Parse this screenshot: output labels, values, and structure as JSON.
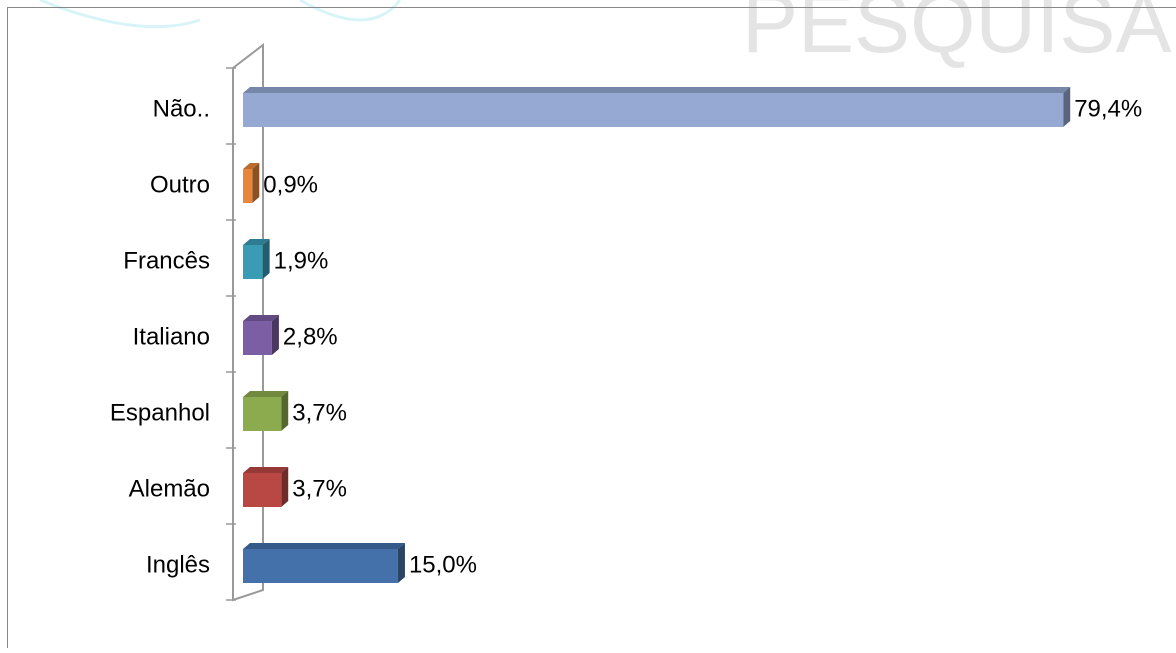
{
  "watermark": "PESQUISA",
  "chart_data": {
    "type": "bar",
    "orientation": "horizontal",
    "categories": [
      "Não..",
      "Outro",
      "Francês",
      "Italiano",
      "Espanhol",
      "Alemão",
      "Inglês"
    ],
    "values": [
      79.4,
      0.9,
      1.9,
      2.8,
      3.7,
      3.7,
      15.0
    ],
    "value_labels": [
      "79,4%",
      "0,9%",
      "1,9%",
      "2,8%",
      "3,7%",
      "3,7%",
      "15,0%"
    ],
    "colors": [
      "#95a9d3",
      "#e8873a",
      "#3a9bb5",
      "#7b5ea3",
      "#8cab4e",
      "#b94744",
      "#4471a9"
    ]
  }
}
